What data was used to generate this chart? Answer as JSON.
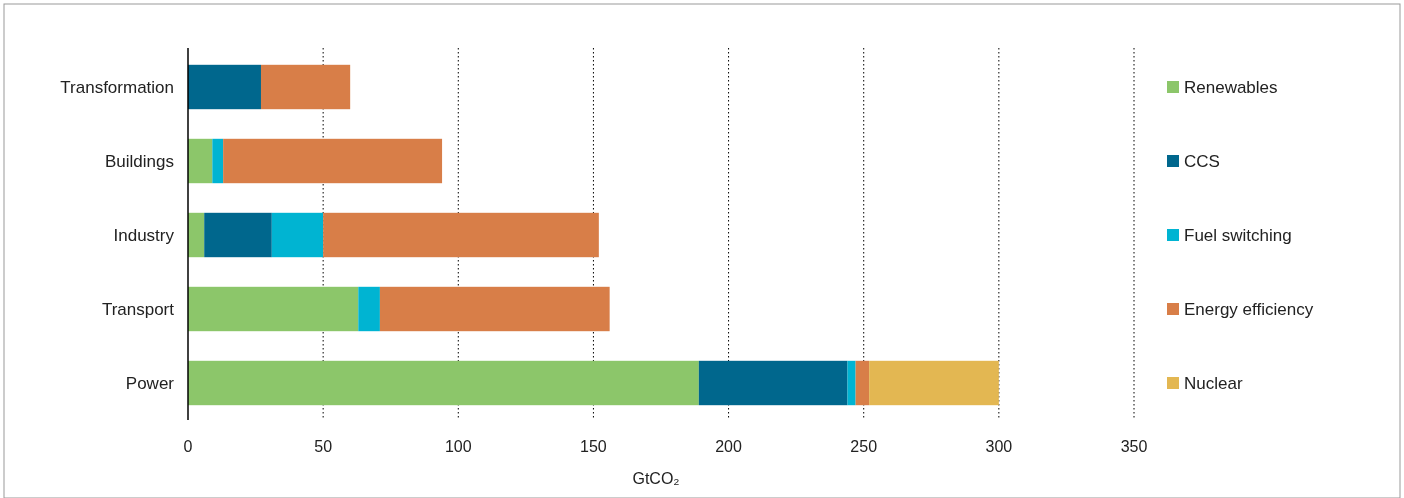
{
  "chart_data": {
    "type": "bar",
    "orientation": "horizontal",
    "stacked": true,
    "categories": [
      "Transformation",
      "Buildings",
      "Industry",
      "Transport",
      "Power"
    ],
    "series": [
      {
        "name": "Renewables",
        "color": "#8cc66a",
        "values": [
          null,
          9,
          6,
          63,
          189
        ]
      },
      {
        "name": "CCS",
        "color": "#00678d",
        "values": [
          27,
          null,
          25,
          null,
          55
        ]
      },
      {
        "name": "Fuel switching",
        "color": "#00b4d2",
        "values": [
          null,
          4,
          19,
          8,
          3
        ]
      },
      {
        "name": "Energy efficiency",
        "color": "#d87e48",
        "values": [
          33,
          81,
          102,
          85,
          5
        ]
      },
      {
        "name": "Nuclear",
        "color": "#e3b752",
        "values": [
          null,
          null,
          null,
          null,
          48
        ]
      }
    ],
    "xlim": [
      0,
      350
    ],
    "xticks": [
      0,
      50,
      100,
      150,
      200,
      250,
      300,
      350
    ],
    "xlabel": "GtCO₂",
    "grid": "x",
    "legend": "right"
  }
}
